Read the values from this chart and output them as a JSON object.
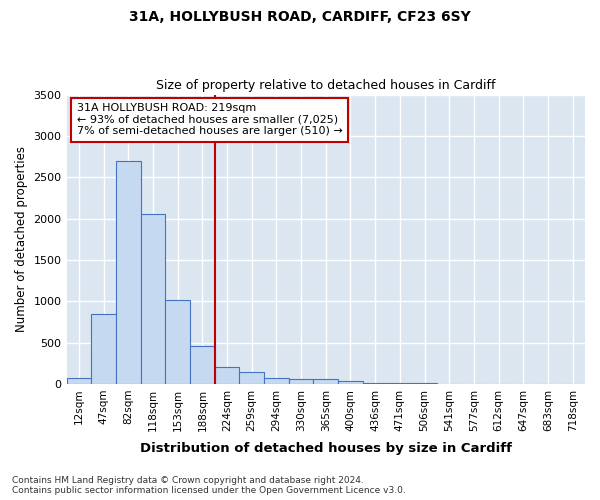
{
  "title1": "31A, HOLLYBUSH ROAD, CARDIFF, CF23 6SY",
  "title2": "Size of property relative to detached houses in Cardiff",
  "xlabel": "Distribution of detached houses by size in Cardiff",
  "ylabel": "Number of detached properties",
  "footnote1": "Contains HM Land Registry data © Crown copyright and database right 2024.",
  "footnote2": "Contains public sector information licensed under the Open Government Licence v3.0.",
  "categories": [
    "12sqm",
    "47sqm",
    "82sqm",
    "118sqm",
    "153sqm",
    "188sqm",
    "224sqm",
    "259sqm",
    "294sqm",
    "330sqm",
    "365sqm",
    "400sqm",
    "436sqm",
    "471sqm",
    "506sqm",
    "541sqm",
    "577sqm",
    "612sqm",
    "647sqm",
    "683sqm",
    "718sqm"
  ],
  "values": [
    70,
    850,
    2700,
    2060,
    1020,
    460,
    210,
    140,
    75,
    65,
    55,
    30,
    15,
    10,
    5,
    2,
    1,
    1,
    1,
    1,
    1
  ],
  "bar_color": "#c5d9f1",
  "bar_edge_color": "#4472c4",
  "background_color": "#dce6f1",
  "fig_background_color": "#ffffff",
  "grid_color": "#ffffff",
  "vline_x_index": 6,
  "vline_color": "#c00000",
  "annotation_line1": "31A HOLLYBUSH ROAD: 219sqm",
  "annotation_line2": "← 93% of detached houses are smaller (7,025)",
  "annotation_line3": "7% of semi-detached houses are larger (510) →",
  "annotation_box_color": "#ffffff",
  "annotation_box_edge": "#c00000",
  "ylim": [
    0,
    3500
  ],
  "yticks": [
    0,
    500,
    1000,
    1500,
    2000,
    2500,
    3000,
    3500
  ]
}
